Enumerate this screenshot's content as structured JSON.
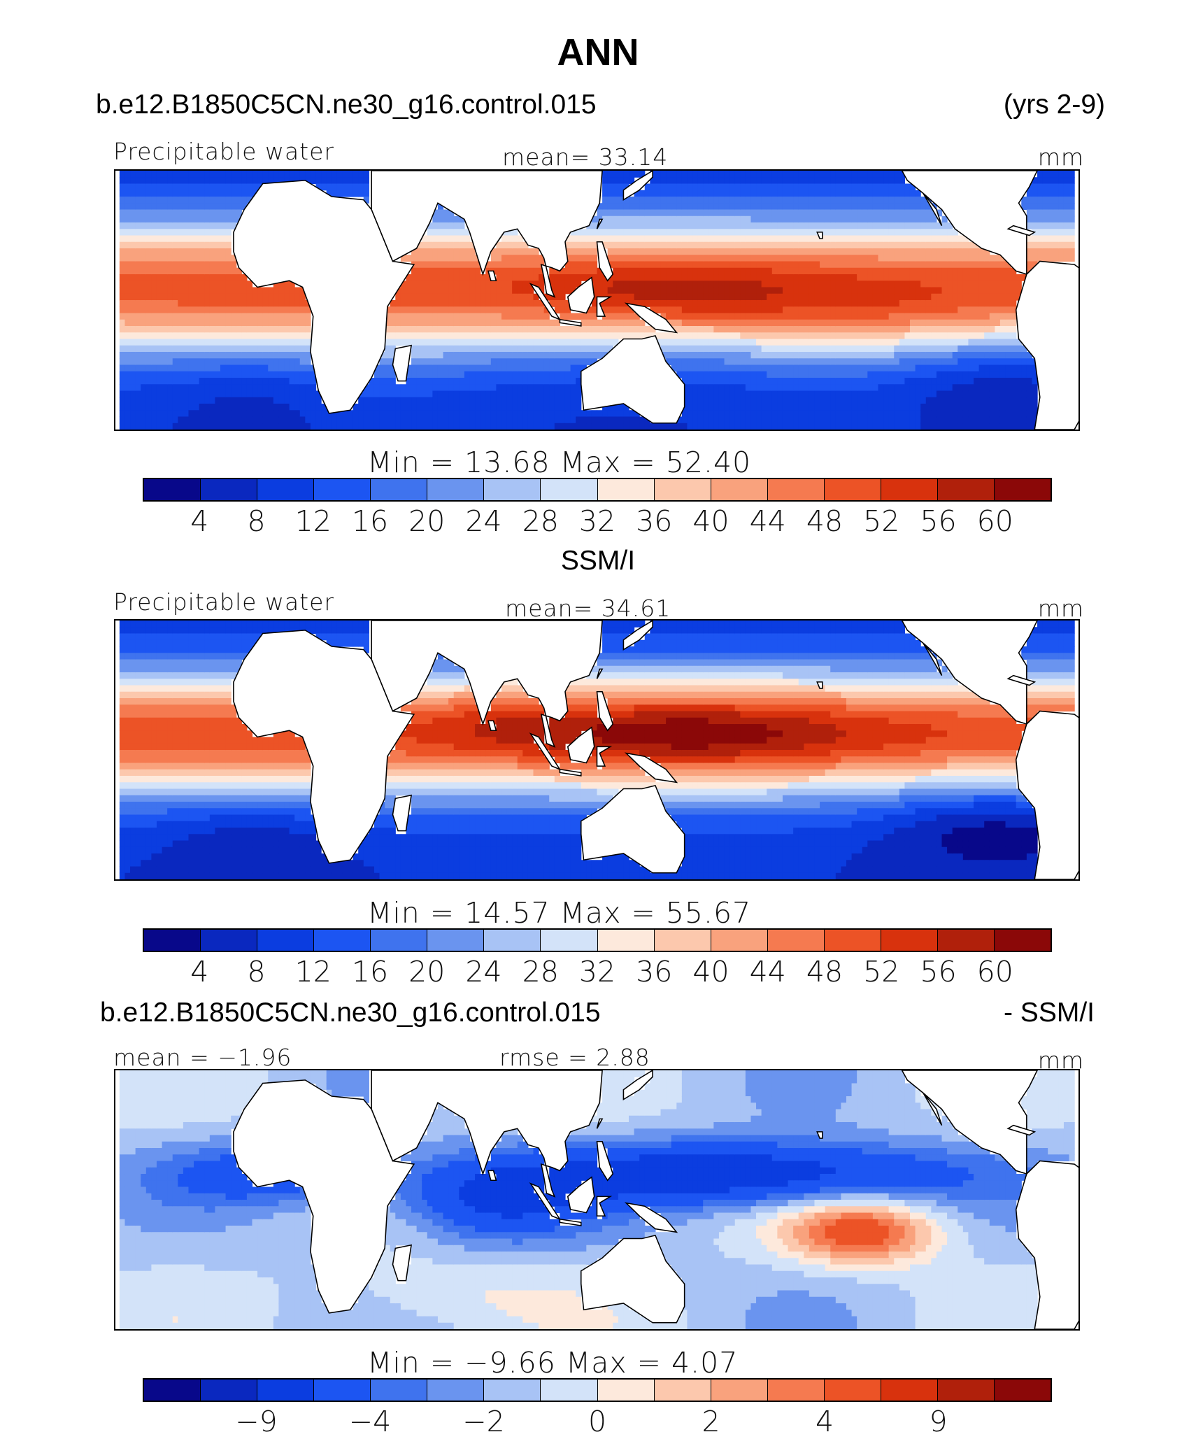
{
  "title": "ANN",
  "panels": [
    {
      "id": "model",
      "header_left": "b.e12.B1850C5CN.ne30_g16.control.015",
      "header_right": "(yrs 2-9)",
      "top_left": "Precipitable water",
      "top_center": "mean=   33.14",
      "top_right": "mm",
      "stats": "Min  =    13.68  Max  =    52.40",
      "colorbar_labels": [
        "4",
        "8",
        "12",
        "16",
        "20",
        "24",
        "28",
        "32",
        "36",
        "40",
        "44",
        "48",
        "52",
        "56",
        "60"
      ],
      "field": "model"
    },
    {
      "id": "obs",
      "header_center": "SSM/I",
      "top_left": "Precipitable water",
      "top_center": "mean=   34.61",
      "top_right": "mm",
      "stats": "Min  =    14.57  Max  =    55.67",
      "colorbar_labels": [
        "4",
        "8",
        "12",
        "16",
        "20",
        "24",
        "28",
        "32",
        "36",
        "40",
        "44",
        "48",
        "52",
        "56",
        "60"
      ],
      "field": "obs"
    },
    {
      "id": "diff",
      "header_left": "b.e12.B1850C5CN.ne30_g16.control.015",
      "header_right": "- SSM/I",
      "top_left": "mean  =   −1.96",
      "top_center": "rmse  =     2.88",
      "top_right": "mm",
      "stats": "Min  =    −9.66  Max  =     4.07",
      "colorbar_labels": [
        "−9",
        "−4",
        "−2",
        "0",
        "2",
        "4",
        "9"
      ],
      "field": "diff"
    }
  ],
  "colors": {
    "palette": [
      "#08088a",
      "#0a28bf",
      "#0b3de0",
      "#1c55f2",
      "#3f73ee",
      "#6a94ef",
      "#a8c3f5",
      "#d3e3f9",
      "#fde9dc",
      "#fcc8ad",
      "#f9a27d",
      "#f57a50",
      "#ec5326",
      "#d8320d",
      "#b0200b",
      "#8b0808"
    ],
    "land": "#ffffff",
    "coast": "#000000"
  }
}
